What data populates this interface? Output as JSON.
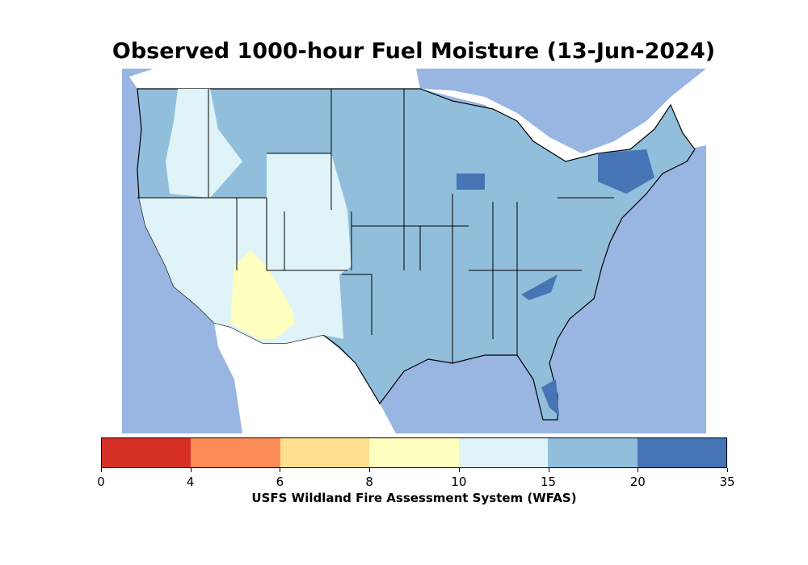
{
  "title": "Observed 1000-hour Fuel Moisture (13-Jun-2024)",
  "colors": {
    "water": "#99b5e1",
    "land_outside": "#ffffff"
  },
  "colorbar": {
    "label": "USFS Wildland Fire Assessment System (WFAS)",
    "ticks": [
      "0",
      "4",
      "6",
      "8",
      "10",
      "15",
      "20",
      "35"
    ],
    "bins": [
      {
        "range": "0-4",
        "color": "#d73027"
      },
      {
        "range": "4-6",
        "color": "#fc8d59"
      },
      {
        "range": "6-8",
        "color": "#fee090"
      },
      {
        "range": "8-10",
        "color": "#ffffbf"
      },
      {
        "range": "10-15",
        "color": "#e0f3f8"
      },
      {
        "range": "15-20",
        "color": "#91bfdb"
      },
      {
        "range": "20-35",
        "color": "#4575b4"
      }
    ]
  }
}
